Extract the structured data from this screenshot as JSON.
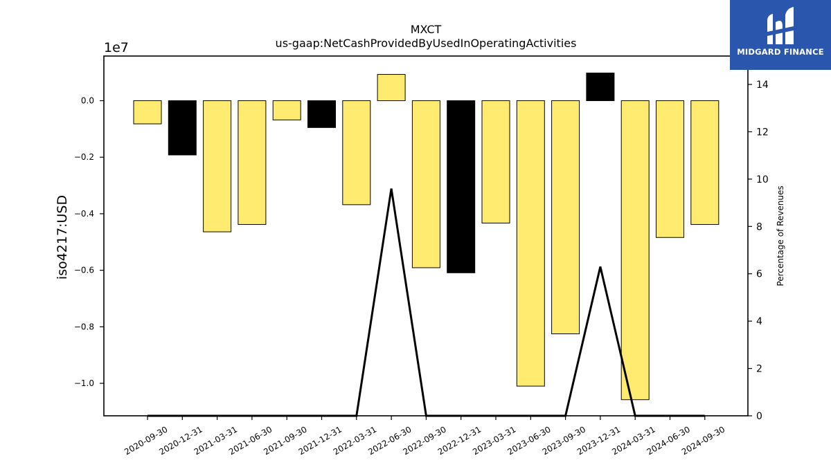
{
  "chart_data": {
    "type": "bar",
    "title": "MXCT",
    "subtitle": "us-gaap:NetCashProvidedByUsedInOperatingActivities",
    "ylabel": "iso4217:USD",
    "y_offset_label": "1e7",
    "ylabel_right": "Percentage of Revenues",
    "categories": [
      "2020-09-30",
      "2020-12-31",
      "2021-03-31",
      "2021-06-30",
      "2021-09-30",
      "2021-12-31",
      "2022-03-31",
      "2022-06-30",
      "2022-09-30",
      "2022-12-31",
      "2023-03-31",
      "2023-06-30",
      "2023-09-30",
      "2023-12-31",
      "2024-03-31",
      "2024-06-30",
      "2024-09-30"
    ],
    "values": [
      -0.082,
      -0.192,
      -0.464,
      -0.438,
      -0.068,
      -0.095,
      -0.368,
      0.093,
      -0.591,
      -0.609,
      -0.433,
      -1.01,
      -0.825,
      0.098,
      -1.058,
      -0.484,
      -0.438
    ],
    "bar_colors": [
      "#ffeb70",
      "#000000",
      "#ffeb70",
      "#ffeb70",
      "#ffeb70",
      "#000000",
      "#ffeb70",
      "#ffeb70",
      "#ffeb70",
      "#000000",
      "#ffeb70",
      "#ffeb70",
      "#ffeb70",
      "#000000",
      "#ffeb70",
      "#ffeb70",
      "#ffeb70"
    ],
    "ylim": [
      -1.115,
      0.158
    ],
    "yticks": [
      0.0,
      -0.2,
      -0.4,
      -0.6,
      -0.8,
      -1.0
    ],
    "ytick_labels": [
      "0.0",
      "−0.2",
      "−0.4",
      "−0.6",
      "−0.8",
      "−1.0"
    ],
    "series_right": {
      "type": "line",
      "color": "#000000",
      "values": [
        0,
        0,
        0,
        0,
        0,
        0,
        0,
        9.6,
        0,
        0,
        0,
        0,
        0,
        6.3,
        0,
        0,
        0
      ]
    },
    "ylim_right": [
      0,
      15.2
    ],
    "yticks_right": [
      0,
      2,
      4,
      6,
      8,
      10,
      12,
      14
    ],
    "grid": false
  },
  "logo": {
    "text": "MIDGARD FINANCE",
    "color": "#2a56ad"
  }
}
